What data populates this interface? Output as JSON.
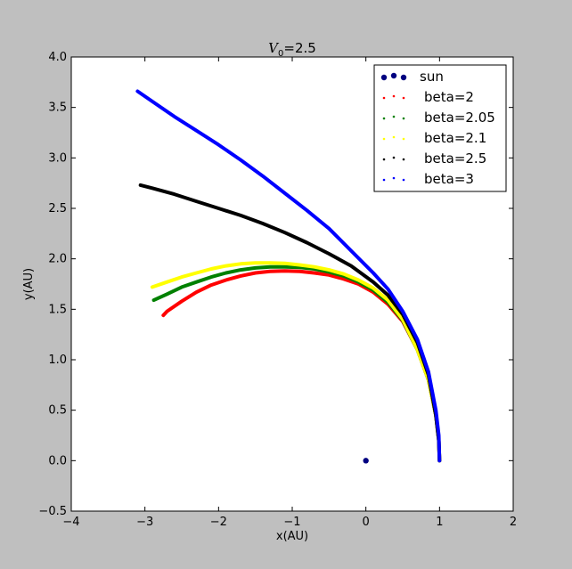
{
  "chart_data": {
    "type": "scatter",
    "title_main": "V",
    "title_sub": "0",
    "title_rest": "=2.5",
    "xlabel": "x(AU)",
    "ylabel": "y(AU)",
    "xlim": [
      -4,
      2
    ],
    "ylim": [
      -0.5,
      4.0
    ],
    "xticks": [
      -4,
      -3,
      -2,
      -1,
      0,
      1,
      2
    ],
    "yticks": [
      -0.5,
      0.0,
      0.5,
      1.0,
      1.5,
      2.0,
      2.5,
      3.0,
      3.5,
      4.0
    ],
    "xtick_labels": [
      "−4",
      "−3",
      "−2",
      "−1",
      "0",
      "1",
      "2"
    ],
    "ytick_labels": [
      "−0.5",
      "0.0",
      "0.5",
      "1.0",
      "1.5",
      "2.0",
      "2.5",
      "3.0",
      "3.5",
      "4.0"
    ],
    "grid": false,
    "legend_position": "top-right",
    "sun": {
      "label": "sun",
      "x": 0,
      "y": 0,
      "color": "#000080"
    },
    "series": [
      {
        "name": "beta=2",
        "color": "#ff0000",
        "x": [
          1.0,
          0.99,
          0.95,
          0.85,
          0.7,
          0.5,
          0.3,
          0.1,
          -0.1,
          -0.3,
          -0.5,
          -0.7,
          -0.9,
          -1.1,
          -1.3,
          -1.5,
          -1.7,
          -1.9,
          -2.1,
          -2.3,
          -2.5,
          -2.7,
          -2.75
        ],
        "y": [
          0.0,
          0.2,
          0.45,
          0.8,
          1.1,
          1.38,
          1.55,
          1.67,
          1.75,
          1.8,
          1.84,
          1.86,
          1.875,
          1.88,
          1.875,
          1.86,
          1.83,
          1.79,
          1.74,
          1.67,
          1.58,
          1.48,
          1.44
        ]
      },
      {
        "name": "beta=2.05",
        "color": "#008000",
        "x": [
          1.0,
          0.99,
          0.95,
          0.85,
          0.7,
          0.5,
          0.3,
          0.1,
          -0.1,
          -0.3,
          -0.5,
          -0.7,
          -0.9,
          -1.1,
          -1.3,
          -1.5,
          -1.7,
          -1.9,
          -2.1,
          -2.3,
          -2.5,
          -2.7,
          -2.88
        ],
        "y": [
          0.0,
          0.2,
          0.45,
          0.8,
          1.1,
          1.39,
          1.57,
          1.69,
          1.77,
          1.83,
          1.87,
          1.9,
          1.915,
          1.92,
          1.92,
          1.91,
          1.89,
          1.86,
          1.82,
          1.77,
          1.72,
          1.65,
          1.59
        ]
      },
      {
        "name": "beta=2.1",
        "color": "#ffff00",
        "x": [
          1.0,
          0.99,
          0.95,
          0.85,
          0.7,
          0.5,
          0.3,
          0.1,
          -0.1,
          -0.3,
          -0.5,
          -0.7,
          -0.9,
          -1.1,
          -1.3,
          -1.5,
          -1.7,
          -1.9,
          -2.1,
          -2.3,
          -2.5,
          -2.7,
          -2.9
        ],
        "y": [
          0.0,
          0.2,
          0.45,
          0.8,
          1.1,
          1.4,
          1.59,
          1.71,
          1.79,
          1.85,
          1.89,
          1.92,
          1.94,
          1.955,
          1.96,
          1.96,
          1.95,
          1.93,
          1.9,
          1.86,
          1.82,
          1.77,
          1.72
        ]
      },
      {
        "name": "beta=2.5",
        "color": "#000000",
        "x": [
          1.0,
          0.99,
          0.95,
          0.85,
          0.7,
          0.5,
          0.3,
          0.1,
          -0.2,
          -0.5,
          -0.8,
          -1.1,
          -1.4,
          -1.7,
          -2.0,
          -2.3,
          -2.6,
          -2.9,
          -3.06
        ],
        "y": [
          0.0,
          0.2,
          0.45,
          0.85,
          1.17,
          1.45,
          1.64,
          1.77,
          1.93,
          2.05,
          2.16,
          2.26,
          2.35,
          2.43,
          2.5,
          2.57,
          2.64,
          2.7,
          2.73
        ]
      },
      {
        "name": "beta=3",
        "color": "#0000ff",
        "x": [
          1.0,
          0.99,
          0.95,
          0.85,
          0.7,
          0.5,
          0.3,
          0.1,
          -0.2,
          -0.5,
          -0.8,
          -1.1,
          -1.4,
          -1.7,
          -2.0,
          -2.3,
          -2.6,
          -2.9,
          -3.1
        ],
        "y": [
          0.0,
          0.25,
          0.5,
          0.88,
          1.2,
          1.48,
          1.7,
          1.86,
          2.08,
          2.3,
          2.48,
          2.65,
          2.82,
          2.98,
          3.13,
          3.27,
          3.41,
          3.56,
          3.66
        ]
      }
    ]
  }
}
